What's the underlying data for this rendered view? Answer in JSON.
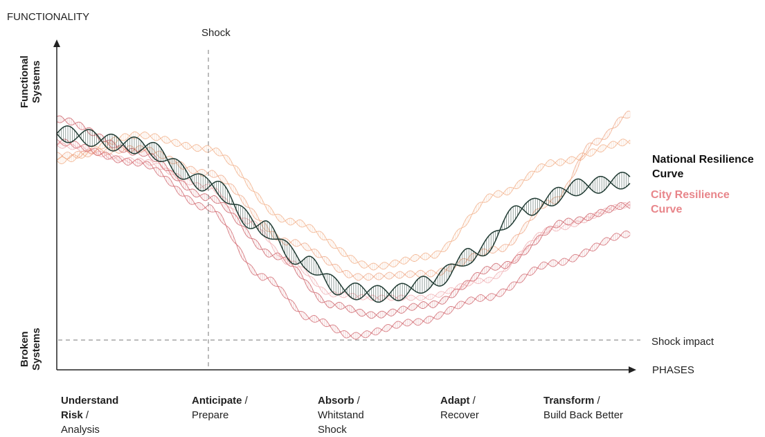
{
  "axes": {
    "y_title": "FUNCTIONALITY",
    "x_title": "PHASES",
    "y_top_label": [
      "Functional",
      "Systems"
    ],
    "y_bottom_label": [
      "Broken",
      "Systems"
    ]
  },
  "markers": {
    "shock": "Shock",
    "shock_impact": "Shock impact"
  },
  "legend": {
    "national": "National Resilience Curve",
    "national_lines": [
      "National Resilience",
      "Curve"
    ],
    "city": "City Resilience Curve",
    "city_lines": [
      "City Resilience",
      "Curve"
    ],
    "national_color": "#1f3a32",
    "city_color": "#e8858a"
  },
  "phases": [
    {
      "bold": "Understand",
      "rest": [
        "Risk /",
        "Analysis"
      ],
      "bold_lines": [
        "Understand",
        "Risk"
      ],
      "suffix_line2": " /",
      "line3": "Analysis"
    },
    {
      "bold": "Anticipate",
      "suffix": " /",
      "line2": "Prepare"
    },
    {
      "bold": "Absorb",
      "suffix": " /",
      "line2": "Whitstand",
      "line3": "Shock"
    },
    {
      "bold": "Adapt",
      "suffix": " /",
      "line2": "Recover"
    },
    {
      "bold": "Transform",
      "suffix": " /",
      "line2": "Build Back Better"
    }
  ]
}
